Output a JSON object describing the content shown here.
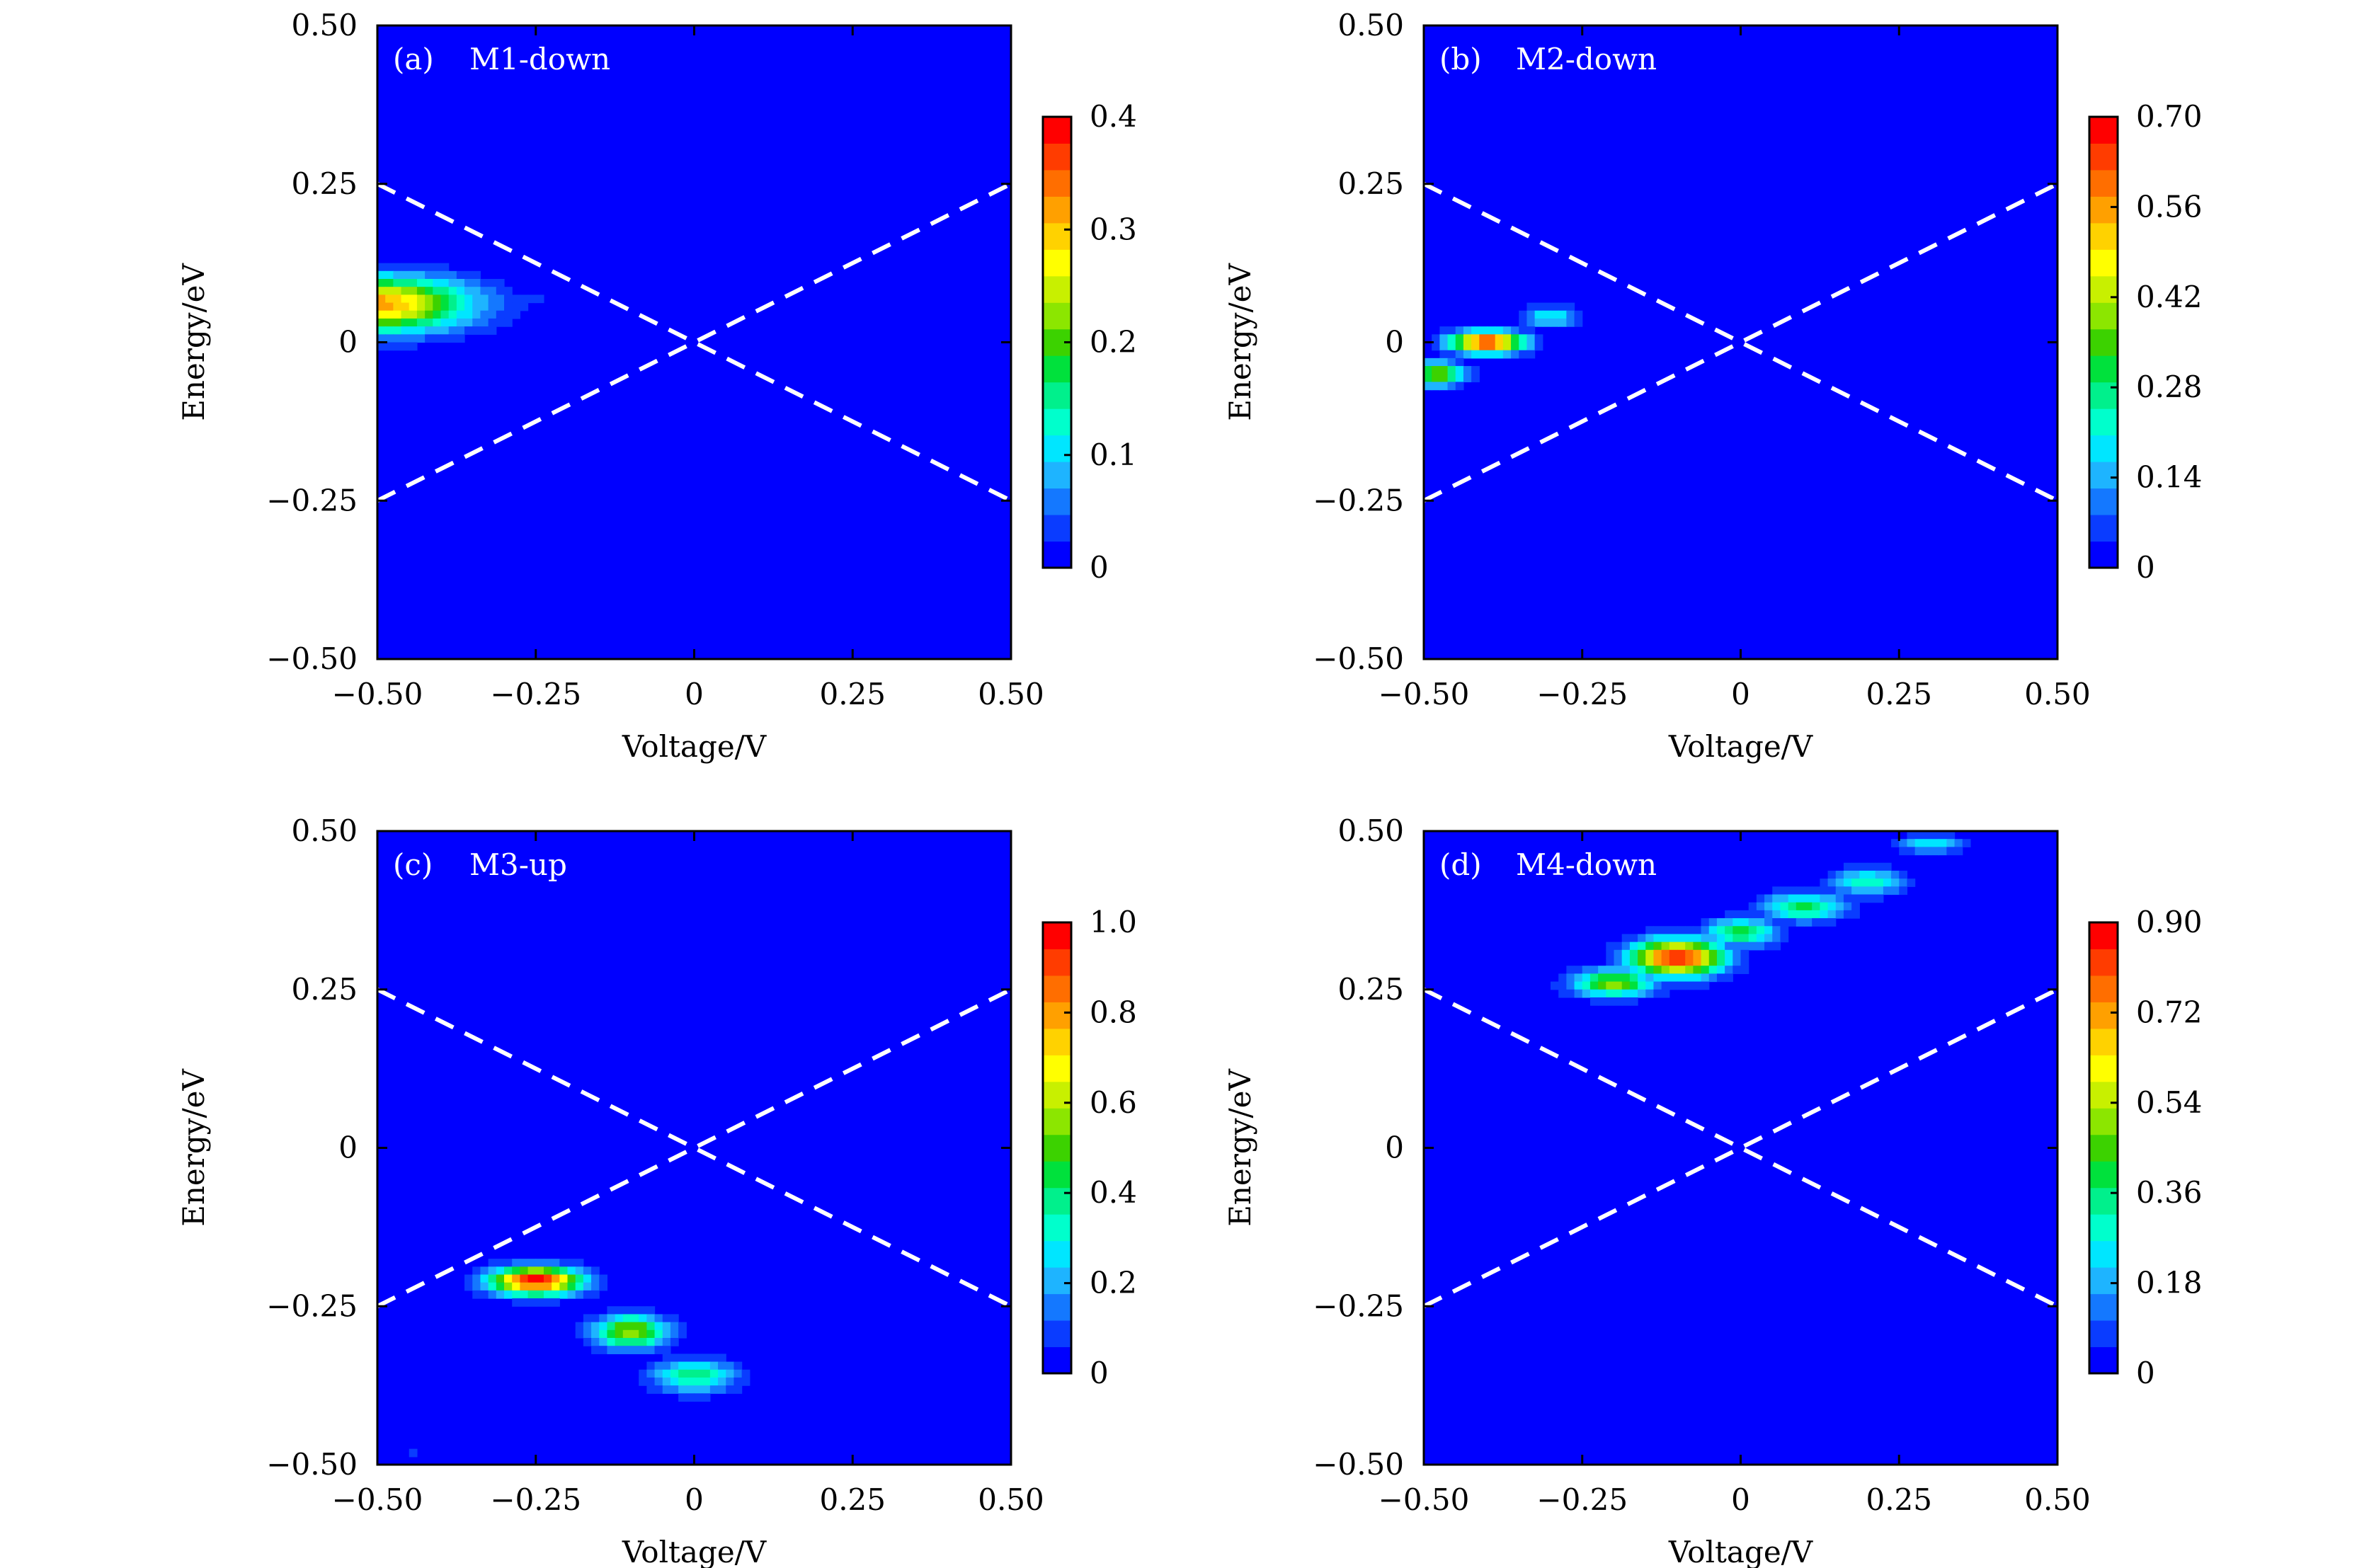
{
  "figure": {
    "colormap": [
      "#0000ff",
      "#0a3cff",
      "#1478ff",
      "#1eb4ff",
      "#00e6ff",
      "#00ffcc",
      "#00f08c",
      "#00e13c",
      "#3cd200",
      "#8ce600",
      "#c8f000",
      "#ffff00",
      "#ffd200",
      "#ffa000",
      "#ff6e00",
      "#ff3c00",
      "#ff0000"
    ],
    "guide_line_color": "#ffffff"
  },
  "chart_data": [
    {
      "type": "heatmap",
      "panel": "(a)",
      "title": "M1-down",
      "xlabel": "Voltage/V",
      "ylabel": "Energy/eV",
      "xlim": [
        -0.5,
        0.5
      ],
      "ylim": [
        -0.5,
        0.5
      ],
      "xticks": [
        "−0.50",
        "−0.25",
        "0",
        "0.25",
        "0.50"
      ],
      "yticks": [
        "−0.50",
        "−0.25",
        "0",
        "0.25",
        "0.50"
      ],
      "colorbar": {
        "min": 0,
        "max": 0.4,
        "ticks": [
          "0",
          "0.1",
          "0.2",
          "0.3",
          "0.4"
        ]
      },
      "guide_lines": [
        {
          "from": [
            -0.5,
            0.25
          ],
          "to": [
            0.5,
            -0.25
          ]
        },
        {
          "from": [
            -0.5,
            -0.25
          ],
          "to": [
            0.5,
            0.25
          ]
        }
      ],
      "peaks": [
        {
          "v": -0.5,
          "e": 0.06,
          "sigma_v": 0.1,
          "sigma_e": 0.03,
          "value": 0.32
        },
        {
          "v": -0.35,
          "e": 0.065,
          "sigma_v": 0.08,
          "sigma_e": 0.012,
          "value": 0.06
        }
      ]
    },
    {
      "type": "heatmap",
      "panel": "(b)",
      "title": "M2-down",
      "xlabel": "Voltage/V",
      "ylabel": "Energy/eV",
      "xlim": [
        -0.5,
        0.5
      ],
      "ylim": [
        -0.5,
        0.5
      ],
      "xticks": [
        "−0.50",
        "−0.25",
        "0",
        "0.25",
        "0.50"
      ],
      "yticks": [
        "−0.50",
        "−0.25",
        "0",
        "0.25",
        "0.50"
      ],
      "colorbar": {
        "min": 0,
        "max": 0.7,
        "ticks": [
          "0",
          "0.14",
          "0.28",
          "0.42",
          "0.56",
          "0.70"
        ]
      },
      "guide_lines": [
        {
          "from": [
            -0.5,
            0.25
          ],
          "to": [
            0.5,
            -0.25
          ]
        },
        {
          "from": [
            -0.5,
            -0.25
          ],
          "to": [
            0.5,
            0.25
          ]
        }
      ],
      "peaks": [
        {
          "v": -0.4,
          "e": 0.0,
          "sigma_v": 0.04,
          "sigma_e": 0.012,
          "value": 0.68
        },
        {
          "v": -0.48,
          "e": -0.05,
          "sigma_v": 0.03,
          "sigma_e": 0.013,
          "value": 0.4
        },
        {
          "v": -0.3,
          "e": 0.04,
          "sigma_v": 0.03,
          "sigma_e": 0.011,
          "value": 0.22
        },
        {
          "v": -0.5,
          "e": 0.13,
          "sigma_v": 0.01,
          "sigma_e": 0.012,
          "value": 0.05
        }
      ]
    },
    {
      "type": "heatmap",
      "panel": "(c)",
      "title": "M3-up",
      "xlabel": "Voltage/V",
      "ylabel": "Energy/eV",
      "xlim": [
        -0.5,
        0.5
      ],
      "ylim": [
        -0.5,
        0.5
      ],
      "xticks": [
        "−0.50",
        "−0.25",
        "0",
        "0.25",
        "0.50"
      ],
      "yticks": [
        "−0.50",
        "−0.25",
        "0",
        "0.25",
        "0.50"
      ],
      "colorbar": {
        "min": 0,
        "max": 1.0,
        "ticks": [
          "0",
          "0.2",
          "0.4",
          "0.6",
          "0.8",
          "1.0"
        ]
      },
      "guide_lines": [
        {
          "from": [
            -0.5,
            0.25
          ],
          "to": [
            0.5,
            -0.25
          ]
        },
        {
          "from": [
            -0.5,
            -0.25
          ],
          "to": [
            0.5,
            0.25
          ]
        }
      ],
      "peaks": [
        {
          "v": -0.25,
          "e": -0.21,
          "sigma_v": 0.05,
          "sigma_e": 0.015,
          "value": 0.98
        },
        {
          "v": -0.1,
          "e": -0.29,
          "sigma_v": 0.04,
          "sigma_e": 0.018,
          "value": 0.6
        },
        {
          "v": 0.0,
          "e": -0.36,
          "sigma_v": 0.045,
          "sigma_e": 0.018,
          "value": 0.4
        },
        {
          "v": -0.44,
          "e": -0.48,
          "sigma_v": 0.05,
          "sigma_e": 0.012,
          "value": 0.06
        }
      ]
    },
    {
      "type": "heatmap",
      "panel": "(d)",
      "title": "M4-down",
      "xlabel": "Voltage/V",
      "ylabel": "Energy/eV",
      "xlim": [
        -0.5,
        0.5
      ],
      "ylim": [
        -0.5,
        0.5
      ],
      "xticks": [
        "−0.50",
        "−0.25",
        "0",
        "0.25",
        "0.50"
      ],
      "yticks": [
        "−0.50",
        "−0.25",
        "0",
        "0.25",
        "0.50"
      ],
      "colorbar": {
        "min": 0,
        "max": 0.9,
        "ticks": [
          "0",
          "0.18",
          "0.36",
          "0.54",
          "0.72",
          "0.90"
        ]
      },
      "guide_lines": [
        {
          "from": [
            -0.5,
            0.25
          ],
          "to": [
            0.5,
            -0.25
          ]
        },
        {
          "from": [
            -0.5,
            -0.25
          ],
          "to": [
            0.5,
            0.25
          ]
        }
      ],
      "peaks": [
        {
          "v": -0.1,
          "e": 0.3,
          "sigma_v": 0.05,
          "sigma_e": 0.02,
          "value": 0.88
        },
        {
          "v": -0.2,
          "e": 0.26,
          "sigma_v": 0.045,
          "sigma_e": 0.015,
          "value": 0.5
        },
        {
          "v": 0.0,
          "e": 0.34,
          "sigma_v": 0.04,
          "sigma_e": 0.015,
          "value": 0.4
        },
        {
          "v": 0.1,
          "e": 0.38,
          "sigma_v": 0.045,
          "sigma_e": 0.015,
          "value": 0.4
        },
        {
          "v": 0.2,
          "e": 0.42,
          "sigma_v": 0.04,
          "sigma_e": 0.015,
          "value": 0.3
        },
        {
          "v": 0.3,
          "e": 0.48,
          "sigma_v": 0.035,
          "sigma_e": 0.01,
          "value": 0.26
        }
      ]
    }
  ]
}
